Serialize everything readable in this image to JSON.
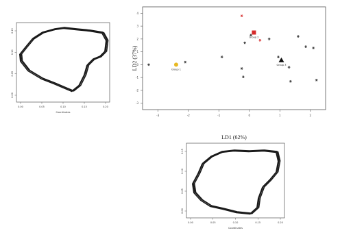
{
  "chart_data": [
    {
      "type": "scatter",
      "title": "",
      "xlabel": "LD1 (62%)",
      "ylabel": "LD2 (37%)",
      "xticks": [
        "-3",
        "-2",
        "-1",
        "0",
        "1",
        "2"
      ],
      "yticks": [
        "-3",
        "-2",
        "-1",
        "0",
        "1",
        "2",
        "3",
        "4"
      ],
      "xlim": [
        -3.5,
        2.5
      ],
      "ylim": [
        -3.5,
        4.5
      ],
      "grid": false,
      "series": [
        {
          "marker": "star",
          "color": "#333333",
          "points": [
            [
              -3.3,
              0
            ],
            [
              -2.1,
              0.2
            ],
            [
              -0.9,
              0.6
            ],
            [
              -0.25,
              -0.3
            ],
            [
              -0.2,
              -0.95
            ],
            [
              -0.15,
              1.7
            ],
            [
              0.05,
              2.3
            ],
            [
              0.65,
              2.0
            ],
            [
              0.95,
              0.6
            ],
            [
              1.3,
              -0.2
            ],
            [
              1.35,
              -1.3
            ],
            [
              1.6,
              2.2
            ],
            [
              1.85,
              1.4
            ],
            [
              2.1,
              1.3
            ],
            [
              2.2,
              -1.2
            ]
          ]
        },
        {
          "marker": "star",
          "color": "#d62a2a",
          "points": [
            [
              -0.25,
              3.8
            ],
            [
              0.35,
              1.9
            ]
          ]
        }
      ],
      "centroids": [
        {
          "label": "Group 1",
          "x": -2.4,
          "y": 0.0,
          "marker": "circle",
          "color": "#e8b923"
        },
        {
          "label": "Group 2",
          "x": 0.15,
          "y": 2.5,
          "marker": "square",
          "color": "#d62a2a"
        },
        {
          "label": "Group 3",
          "x": 1.05,
          "y": 0.35,
          "marker": "triangle",
          "color": "#111111"
        }
      ]
    },
    {
      "type": "line",
      "title": "",
      "xlabel": "Coordinates",
      "xticks": [
        "0.00",
        "0.05",
        "0.10",
        "0.15",
        "0.20"
      ],
      "yticks": [
        "0.00",
        "0.05",
        "0.10",
        "0.15"
      ],
      "description_of_series": "three overlapping closed outlines"
    },
    {
      "type": "line",
      "title": "",
      "xlabel": "Coordinates",
      "xticks": [
        "0.00",
        "0.05",
        "0.10",
        "0.15",
        "0.20"
      ],
      "yticks": [
        "0.00",
        "0.05",
        "0.10",
        "0.15"
      ],
      "description_of_series": "three overlapping closed outlines"
    }
  ]
}
